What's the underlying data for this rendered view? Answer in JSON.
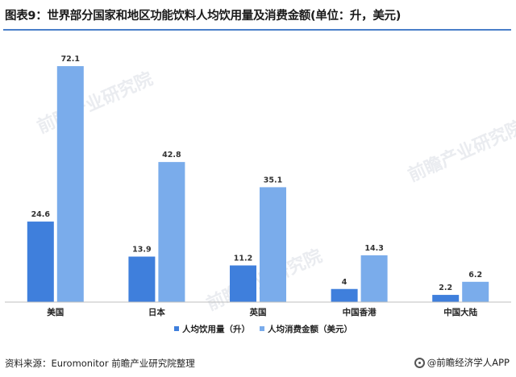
{
  "title": "图表9：世界部分国家和地区功能饮料人均饮用量及消费金额(单位：升，美元)",
  "source": "资料来源：Euromonitor 前瞻产业研究院整理",
  "brand": "@前瞻经济学人APP",
  "watermark": "前瞻产业研究院",
  "colors": {
    "series1": "#3f7fdc",
    "series2": "#7aaceb",
    "rule": "#4a7fc9"
  },
  "chart_data": {
    "type": "bar",
    "categories": [
      "美国",
      "日本",
      "英国",
      "中国香港",
      "中国大陆"
    ],
    "series": [
      {
        "name": "人均饮用量（升）",
        "values": [
          24.6,
          13.9,
          11.2,
          4,
          2.2
        ]
      },
      {
        "name": "人均消费金额（美元）",
        "values": [
          72.1,
          42.8,
          35.1,
          14.3,
          6.2
        ]
      }
    ],
    "ylim": [
      0,
      80
    ],
    "grid": false,
    "legend": "bottom"
  }
}
